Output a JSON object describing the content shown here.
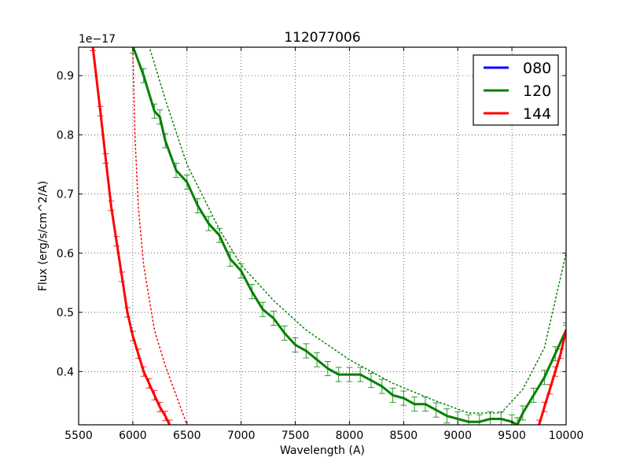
{
  "chart_data": {
    "type": "line",
    "title": "112077006",
    "xlabel": "Wavelength (A)",
    "ylabel": "Flux (erg/s/cm^2/A)",
    "y_offset_label": "1e−17",
    "xlim": [
      5500,
      10000
    ],
    "ylim": [
      0.31,
      0.948
    ],
    "y_scale_factor": 1e-17,
    "grid": true,
    "grid_style": "dotted",
    "legend_position": "upper right",
    "x_ticks": [
      5500,
      6000,
      6500,
      7000,
      7500,
      8000,
      8500,
      9000,
      9500,
      10000
    ],
    "x_tick_labels": [
      "5500",
      "6000",
      "6500",
      "7000",
      "7500",
      "8000",
      "8500",
      "9000",
      "9500",
      "10000"
    ],
    "y_ticks": [
      0.4,
      0.5,
      0.6,
      0.7,
      0.8,
      0.9
    ],
    "y_tick_labels": [
      "0.4",
      "0.5",
      "0.6",
      "0.7",
      "0.8",
      "0.9"
    ],
    "legend": [
      {
        "label": "080",
        "color": "#0000ff"
      },
      {
        "label": "120",
        "color": "#008000"
      },
      {
        "label": "144",
        "color": "#ff0000"
      }
    ],
    "series": [
      {
        "name": "080",
        "color": "#0000ff",
        "x": [],
        "y": []
      },
      {
        "name": "120",
        "color": "#008000",
        "style": "solid with error bars",
        "x": [
          6000,
          6100,
          6200,
          6250,
          6300,
          6400,
          6500,
          6600,
          6700,
          6800,
          6900,
          7000,
          7100,
          7200,
          7300,
          7400,
          7500,
          7600,
          7700,
          7800,
          7900,
          8000,
          8100,
          8200,
          8300,
          8400,
          8500,
          8600,
          8700,
          8800,
          8900,
          9000,
          9100,
          9200,
          9300,
          9400,
          9500,
          9550,
          9600,
          9700,
          9800,
          9900,
          10000
        ],
        "y": [
          0.95,
          0.9,
          0.84,
          0.83,
          0.79,
          0.74,
          0.72,
          0.68,
          0.65,
          0.63,
          0.59,
          0.57,
          0.535,
          0.505,
          0.49,
          0.465,
          0.445,
          0.435,
          0.42,
          0.405,
          0.395,
          0.395,
          0.395,
          0.385,
          0.375,
          0.36,
          0.355,
          0.345,
          0.345,
          0.335,
          0.325,
          0.32,
          0.315,
          0.315,
          0.32,
          0.32,
          0.315,
          0.31,
          0.33,
          0.36,
          0.39,
          0.43,
          0.47
        ],
        "error": 0.012
      },
      {
        "name": "120 model",
        "color": "#008000",
        "style": "dotted",
        "x": [
          6150,
          6300,
          6500,
          6800,
          7000,
          7300,
          7600,
          8000,
          8400,
          8800,
          9100,
          9400,
          9600,
          9800,
          10000
        ],
        "y": [
          0.95,
          0.86,
          0.75,
          0.64,
          0.58,
          0.52,
          0.47,
          0.42,
          0.38,
          0.35,
          0.33,
          0.33,
          0.37,
          0.44,
          0.6
        ]
      },
      {
        "name": "144",
        "color": "#ff0000",
        "style": "solid with error bars",
        "x": [
          5630,
          5700,
          5750,
          5800,
          5850,
          5900,
          5950,
          6000,
          6050,
          6100,
          6150,
          6200,
          6250,
          6300,
          6340,
          9750,
          9800,
          9850,
          9900,
          9950,
          10000
        ],
        "y": [
          0.95,
          0.84,
          0.76,
          0.68,
          0.62,
          0.56,
          0.5,
          0.46,
          0.43,
          0.4,
          0.38,
          0.36,
          0.34,
          0.325,
          0.31,
          0.31,
          0.34,
          0.37,
          0.4,
          0.43,
          0.47
        ],
        "error": 0.008
      },
      {
        "name": "144 model",
        "color": "#ff0000",
        "style": "dotted",
        "x": [
          6000,
          6020,
          6050,
          6100,
          6200,
          6300,
          6400,
          6500
        ],
        "y": [
          0.95,
          0.8,
          0.68,
          0.58,
          0.47,
          0.41,
          0.36,
          0.31
        ]
      }
    ]
  }
}
